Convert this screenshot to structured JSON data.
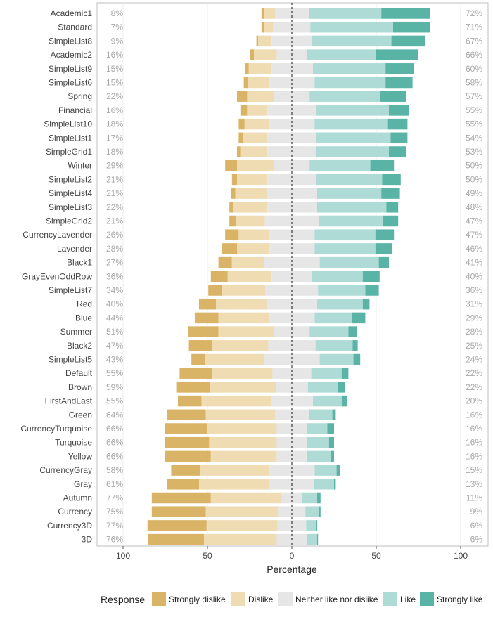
{
  "chart_data": {
    "type": "bar",
    "orientation": "horizontal",
    "stacked": "diverging",
    "xlabel": "Percentage",
    "xlim": [
      -100,
      100
    ],
    "xticks": [
      {
        "value": -100,
        "label": "100"
      },
      {
        "value": -50,
        "label": "50"
      },
      {
        "value": 0,
        "label": "0"
      },
      {
        "value": 50,
        "label": "50"
      },
      {
        "value": 100,
        "label": "100"
      }
    ],
    "legend": {
      "title": "Response",
      "position": "bottom",
      "items": [
        {
          "name": "Strongly dislike",
          "color": "#d9b466"
        },
        {
          "name": "Dislike",
          "color": "#efdcb2"
        },
        {
          "name": "Neither like nor dislike",
          "color": "#e6e6e6"
        },
        {
          "name": "Like",
          "color": "#aedbd5"
        },
        {
          "name": "Strongly like",
          "color": "#5ab4a6"
        }
      ]
    },
    "series_order": [
      "Strongly dislike",
      "Dislike",
      "Neither like nor dislike",
      "Like",
      "Strongly like"
    ],
    "categories": [
      {
        "name": "Academic1",
        "left_pct": "8%",
        "right_pct": "72%",
        "values": [
          1.5,
          6.5,
          20,
          43,
          29
        ]
      },
      {
        "name": "Standard",
        "left_pct": "7%",
        "right_pct": "71%",
        "values": [
          1.5,
          5.5,
          22,
          49,
          22
        ]
      },
      {
        "name": "SimpleList8",
        "left_pct": "9%",
        "right_pct": "67%",
        "values": [
          1,
          8,
          24,
          47,
          20
        ]
      },
      {
        "name": "Academic2",
        "left_pct": "16%",
        "right_pct": "66%",
        "values": [
          2.5,
          13.5,
          18,
          41,
          25
        ]
      },
      {
        "name": "SimpleList9",
        "left_pct": "15%",
        "right_pct": "60%",
        "values": [
          2,
          13,
          25,
          43,
          17
        ]
      },
      {
        "name": "SimpleList6",
        "left_pct": "15%",
        "right_pct": "58%",
        "values": [
          2.5,
          12.5,
          27,
          42,
          16
        ]
      },
      {
        "name": "Spring",
        "left_pct": "22%",
        "right_pct": "57%",
        "values": [
          6,
          16,
          21,
          42,
          15
        ]
      },
      {
        "name": "Financial",
        "left_pct": "16%",
        "right_pct": "55%",
        "values": [
          4,
          12,
          29,
          43,
          12
        ]
      },
      {
        "name": "SimpleList10",
        "left_pct": "18%",
        "right_pct": "55%",
        "values": [
          3.5,
          14.5,
          27,
          43,
          12
        ]
      },
      {
        "name": "SimpleList1",
        "left_pct": "17%",
        "right_pct": "54%",
        "values": [
          2.5,
          14.5,
          29,
          44,
          10
        ]
      },
      {
        "name": "SimpleGrid1",
        "left_pct": "18%",
        "right_pct": "53%",
        "values": [
          2,
          16,
          29,
          43,
          10
        ]
      },
      {
        "name": "Winter",
        "left_pct": "29%",
        "right_pct": "50%",
        "values": [
          7,
          22,
          21,
          36,
          14
        ]
      },
      {
        "name": "SimpleList2",
        "left_pct": "21%",
        "right_pct": "50%",
        "values": [
          3,
          18,
          29,
          39,
          11
        ]
      },
      {
        "name": "SimpleList4",
        "left_pct": "21%",
        "right_pct": "49%",
        "values": [
          2.5,
          18.5,
          30,
          38,
          11
        ]
      },
      {
        "name": "SimpleList3",
        "left_pct": "22%",
        "right_pct": "48%",
        "values": [
          2,
          20,
          30,
          41,
          7
        ]
      },
      {
        "name": "SimpleGrid2",
        "left_pct": "21%",
        "right_pct": "47%",
        "values": [
          4,
          17,
          32,
          38,
          9
        ]
      },
      {
        "name": "CurrencyLavender",
        "left_pct": "26%",
        "right_pct": "47%",
        "values": [
          8,
          18,
          27,
          36,
          11
        ]
      },
      {
        "name": "Lavender",
        "left_pct": "28%",
        "right_pct": "46%",
        "values": [
          9,
          19,
          27,
          36,
          10
        ]
      },
      {
        "name": "Black1",
        "left_pct": "27%",
        "right_pct": "41%",
        "values": [
          8,
          19,
          33,
          35,
          6
        ]
      },
      {
        "name": "GrayEvenOddRow",
        "left_pct": "36%",
        "right_pct": "40%",
        "values": [
          10,
          26,
          24,
          30,
          10
        ]
      },
      {
        "name": "SimpleList7",
        "left_pct": "34%",
        "right_pct": "36%",
        "values": [
          8,
          26,
          31,
          28,
          8
        ]
      },
      {
        "name": "Red",
        "left_pct": "40%",
        "right_pct": "31%",
        "values": [
          10,
          30,
          30,
          27,
          4
        ]
      },
      {
        "name": "Blue",
        "left_pct": "44%",
        "right_pct": "29%",
        "values": [
          14,
          30,
          27,
          22,
          8
        ]
      },
      {
        "name": "Summer",
        "left_pct": "51%",
        "right_pct": "28%",
        "values": [
          18,
          33,
          21,
          23,
          5
        ]
      },
      {
        "name": "Black2",
        "left_pct": "47%",
        "right_pct": "25%",
        "values": [
          14,
          33,
          28,
          22,
          3
        ]
      },
      {
        "name": "SimpleList5",
        "left_pct": "43%",
        "right_pct": "24%",
        "values": [
          8,
          35,
          33,
          20,
          4
        ]
      },
      {
        "name": "Default",
        "left_pct": "55%",
        "right_pct": "22%",
        "values": [
          19,
          36,
          23,
          18,
          4
        ]
      },
      {
        "name": "Brown",
        "left_pct": "59%",
        "right_pct": "22%",
        "values": [
          20,
          39,
          19,
          18,
          4
        ]
      },
      {
        "name": "FirstAndLast",
        "left_pct": "55%",
        "right_pct": "20%",
        "values": [
          14,
          41,
          25,
          17,
          3
        ]
      },
      {
        "name": "Green",
        "left_pct": "64%",
        "right_pct": "16%",
        "values": [
          23,
          41,
          20,
          14,
          2
        ]
      },
      {
        "name": "CurrencyTurquoise",
        "left_pct": "66%",
        "right_pct": "16%",
        "values": [
          25,
          41,
          18,
          12,
          4
        ]
      },
      {
        "name": "Turquoise",
        "left_pct": "66%",
        "right_pct": "16%",
        "values": [
          26,
          40,
          18,
          13,
          3
        ]
      },
      {
        "name": "Yellow",
        "left_pct": "66%",
        "right_pct": "16%",
        "values": [
          27,
          39,
          18,
          14,
          2
        ]
      },
      {
        "name": "CurrencyGray",
        "left_pct": "58%",
        "right_pct": "15%",
        "values": [
          17,
          41,
          27,
          13,
          2
        ]
      },
      {
        "name": "Gray",
        "left_pct": "61%",
        "right_pct": "13%",
        "values": [
          19,
          42,
          26,
          12,
          1
        ]
      },
      {
        "name": "Autumn",
        "left_pct": "77%",
        "right_pct": "11%",
        "values": [
          35,
          42,
          12,
          9,
          2
        ]
      },
      {
        "name": "Currency",
        "left_pct": "75%",
        "right_pct": "9%",
        "values": [
          32,
          43,
          16,
          8,
          1
        ]
      },
      {
        "name": "Currency3D",
        "left_pct": "77%",
        "right_pct": "6%",
        "values": [
          35,
          42,
          17,
          6,
          0.5
        ]
      },
      {
        "name": "3D",
        "left_pct": "76%",
        "right_pct": "6%",
        "values": [
          33,
          43,
          18,
          6,
          0.5
        ]
      }
    ]
  }
}
